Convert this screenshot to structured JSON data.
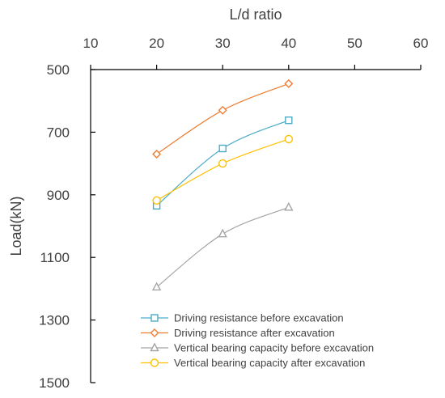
{
  "chart_data": {
    "type": "line",
    "xlabel": "L/d ratio",
    "ylabel": "Load(kN)",
    "x_axis_position": "top",
    "y_axis_reversed": true,
    "xlim": [
      10,
      60
    ],
    "ylim": [
      500,
      1500
    ],
    "x_ticks": [
      10,
      20,
      30,
      40,
      50,
      60
    ],
    "y_ticks": [
      500,
      700,
      900,
      1100,
      1300,
      1500
    ],
    "grid": false,
    "legend_position": "bottom-right",
    "x": [
      20,
      30,
      40
    ],
    "series": [
      {
        "name": "Driving resistance before excavation",
        "values": [
          935,
          752,
          662
        ],
        "color": "#4BACC6",
        "marker": "square"
      },
      {
        "name": "Driving resistance after excavation",
        "values": [
          770,
          630,
          545
        ],
        "color": "#ED7D31",
        "marker": "diamond"
      },
      {
        "name": "Vertical bearing capacity before excavation",
        "values": [
          1195,
          1025,
          940
        ],
        "color": "#A5A5A5",
        "marker": "triangle"
      },
      {
        "name": "Vertical bearing capacity after excavation",
        "values": [
          918,
          800,
          722
        ],
        "color": "#FFC000",
        "marker": "circle"
      }
    ]
  }
}
